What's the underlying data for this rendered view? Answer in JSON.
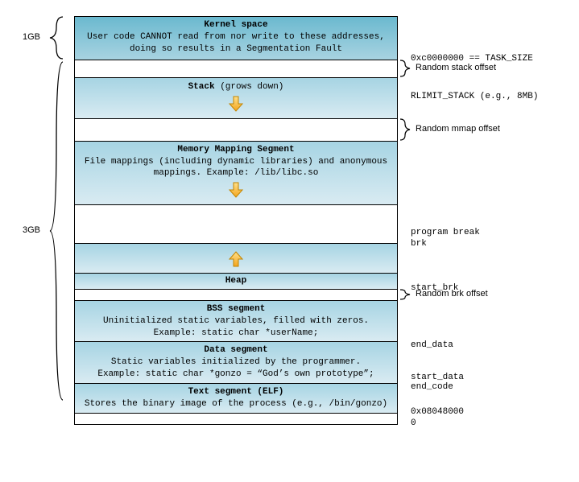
{
  "colors": {
    "seg_top": "#a6d4e3",
    "seg_bot": "#d9ebf2",
    "kernel_top": "#6bb9cf",
    "kernel_bot": "#a8d3e1",
    "border": "#000000",
    "arrow_fill": "#f7b52c",
    "arrow_stroke": "#c28400",
    "white": "#ffffff"
  },
  "left": {
    "size_top": "1GB",
    "size_bot": "3GB"
  },
  "segments": {
    "kernel": {
      "title": "Kernel space",
      "desc": "User code CANNOT read from nor write to these addresses, doing so results in a Segmentation Fault"
    },
    "stack": {
      "title": "Stack",
      "note": " (grows down)"
    },
    "mmap": {
      "title": "Memory Mapping Segment",
      "desc": "File mappings (including dynamic libraries) and anonymous mappings. Example: /lib/libc.so"
    },
    "heap": {
      "title": "Heap"
    },
    "bss": {
      "title": "BSS segment",
      "desc1": "Uninitialized static variables, filled with zeros.",
      "desc2": "Example: static char *userName;"
    },
    "data": {
      "title": "Data segment",
      "desc1": "Static variables initialized by the programmer.",
      "desc2": "Example: static char *gonzo = “God’s own prototype”;"
    },
    "text": {
      "title": "Text segment (ELF)",
      "desc": "Stores the binary image of the process (e.g., /bin/gonzo)"
    }
  },
  "right": {
    "task_size": "0xc0000000 == TASK_SIZE",
    "rand_stack": "Random stack offset",
    "rlimit": "RLIMIT_STACK (e.g., 8MB)",
    "rand_mmap": "Random mmap offset",
    "prog_break": "program break",
    "brk": "brk",
    "start_brk": "start_brk",
    "rand_brk": "Random brk offset",
    "end_data": "end_data",
    "start_data": "start_data",
    "end_code": "end_code",
    "addr_text": "0x08048000",
    "zero": "0"
  },
  "heights": {
    "kernel": 54,
    "gap1": 22,
    "stack": 42,
    "gap2": 28,
    "mmap": 70,
    "gap3": 48,
    "heapgrow": 36,
    "heap": 20,
    "gap4": 14,
    "bss": 48,
    "data": 48,
    "text": 34,
    "gap5": 14
  }
}
